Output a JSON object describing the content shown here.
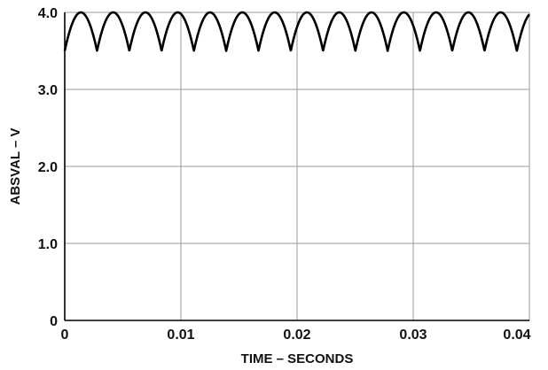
{
  "chart_data": {
    "type": "line",
    "title": "",
    "xlabel": "TIME – SECONDS",
    "ylabel": "ABSVAL – V",
    "xlim": [
      0,
      0.04
    ],
    "ylim": [
      0,
      4.0
    ],
    "x_ticks": [
      0,
      0.01,
      0.02,
      0.03,
      0.04
    ],
    "x_tick_labels": [
      "0",
      "0.01",
      "0.02",
      "0.03",
      "0.04"
    ],
    "y_ticks": [
      0,
      1.0,
      2.0,
      3.0,
      4.0
    ],
    "y_tick_labels": [
      "0",
      "1.0",
      "2.0",
      "3.0",
      "4.0"
    ],
    "grid": true,
    "series": [
      {
        "waveform": "full-wave rectified sine",
        "peak": 4.0,
        "min": 3.5,
        "cusp_period": 0.00278,
        "first_cusp_x": 0.0,
        "x_start": 0,
        "x_end": 0.04,
        "color": "#000000"
      }
    ]
  }
}
